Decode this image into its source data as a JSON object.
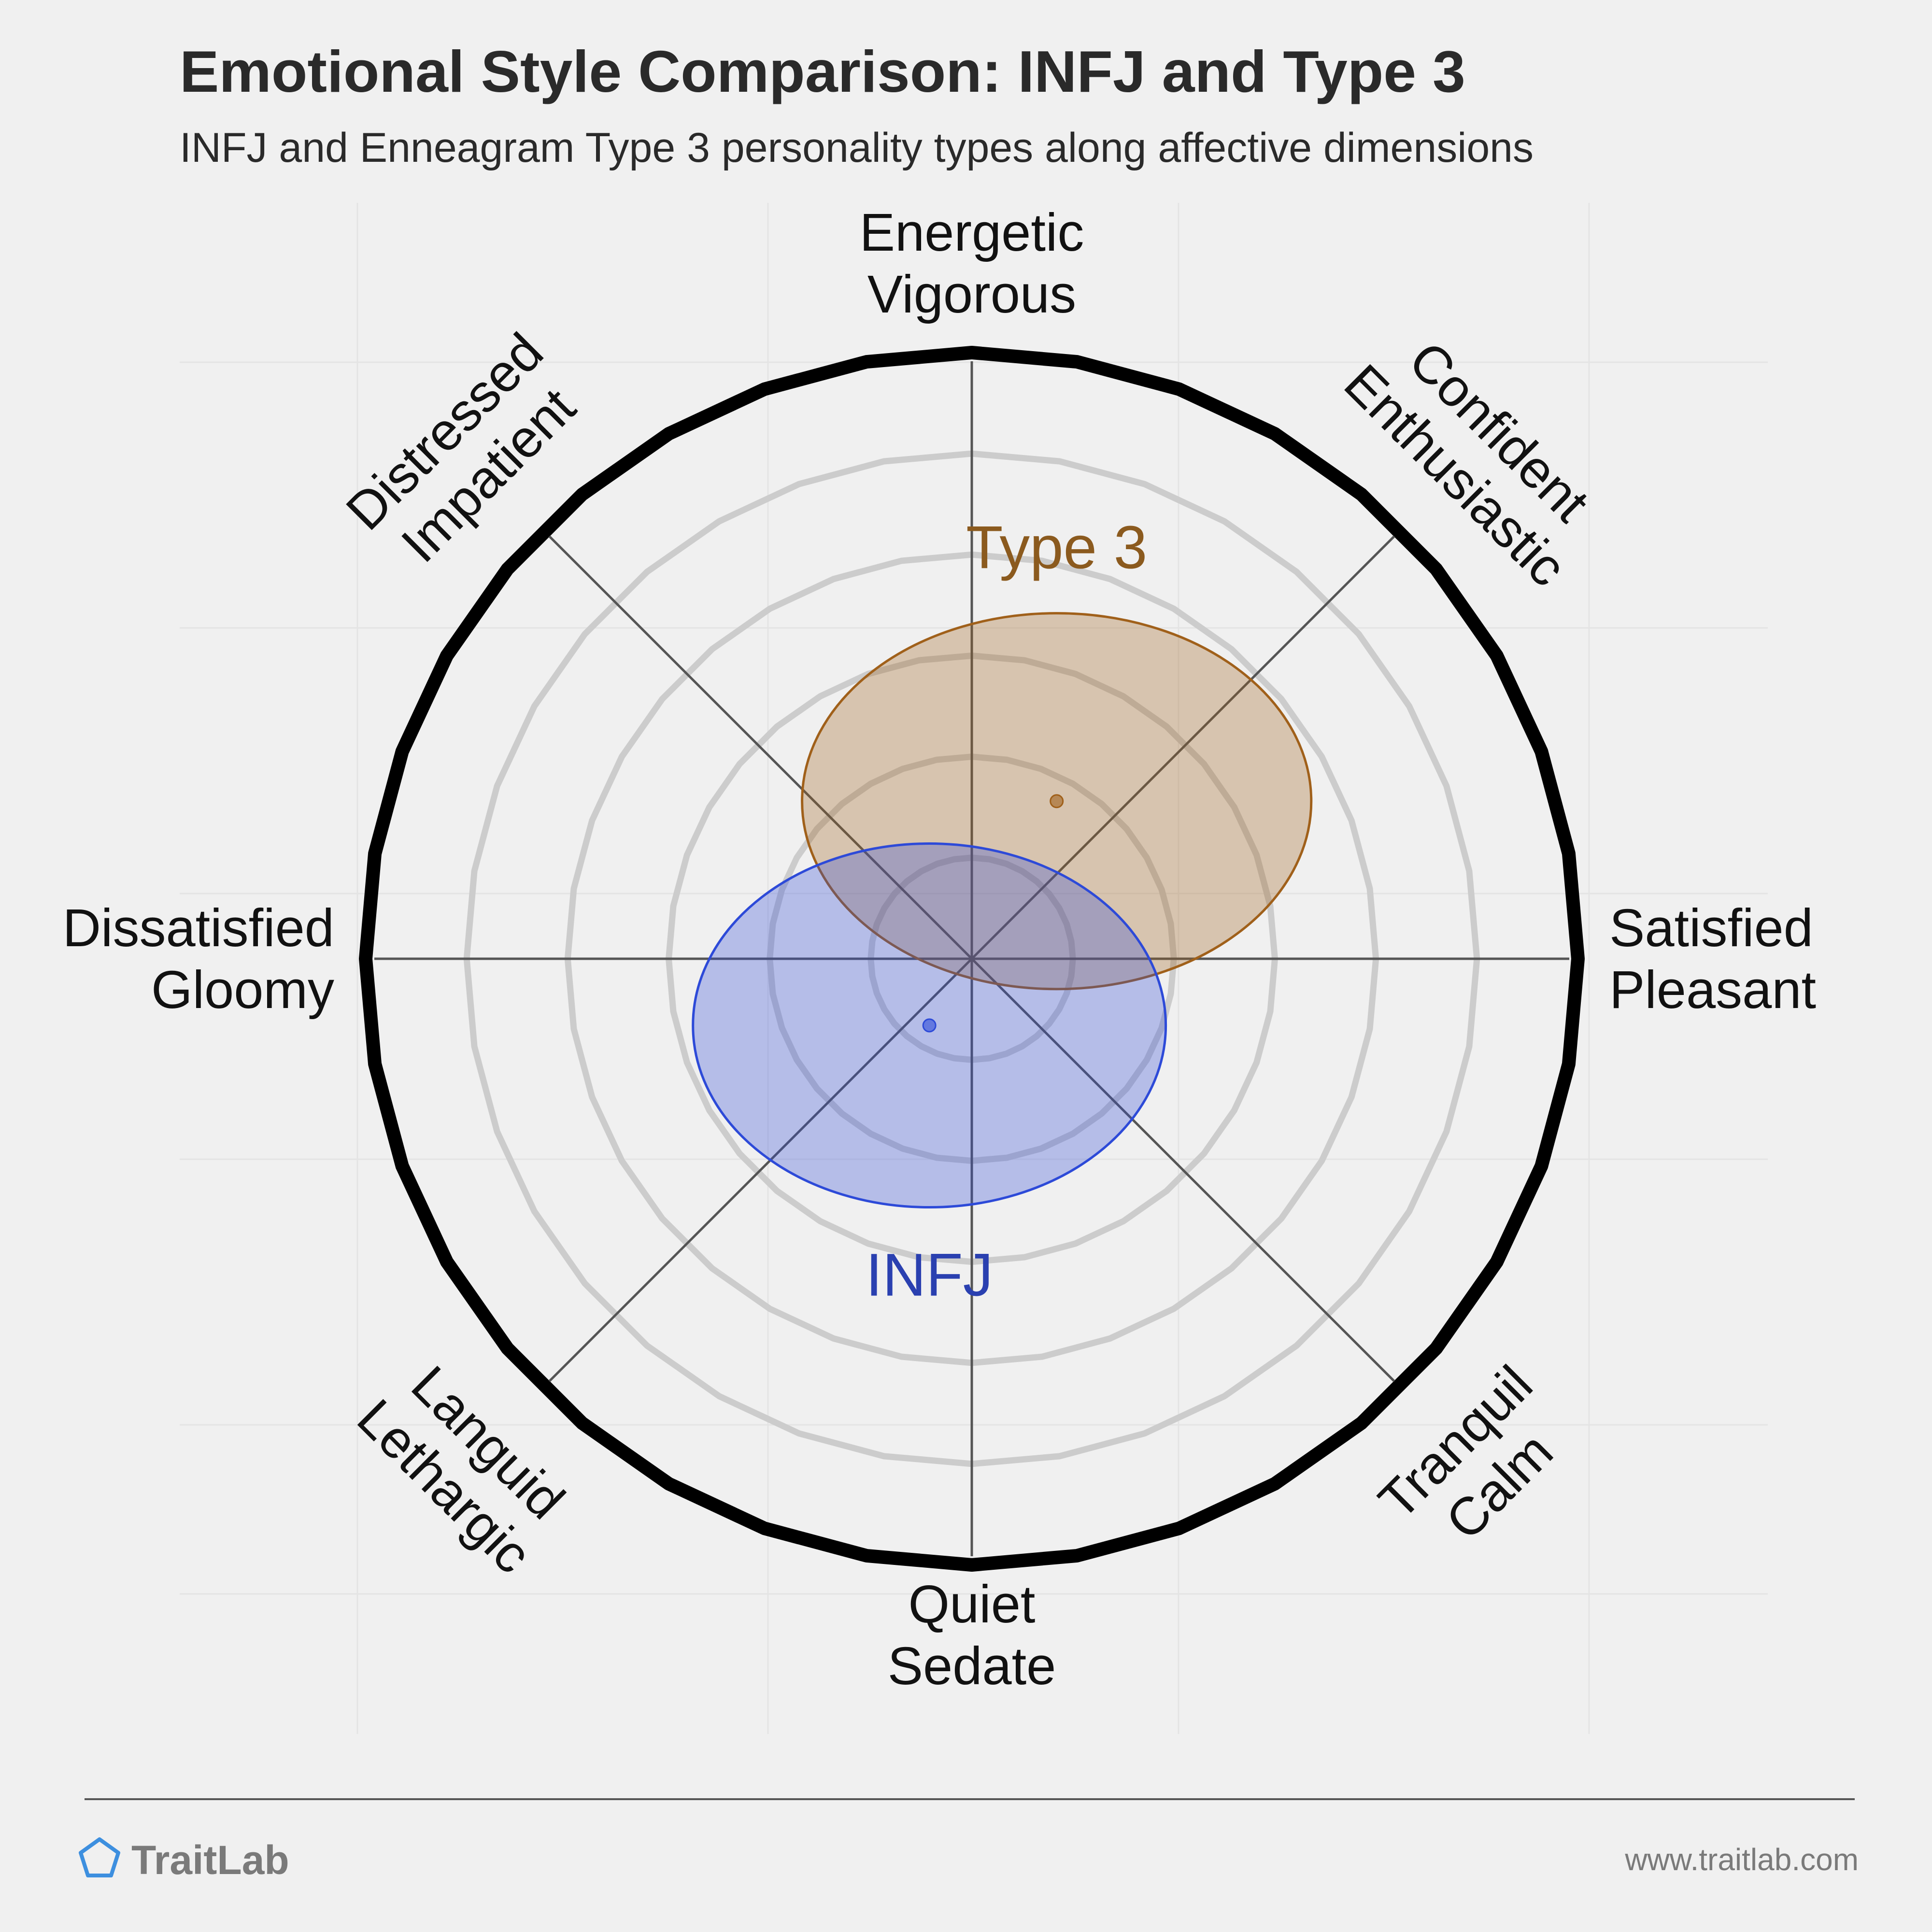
{
  "header": {
    "title": "Emotional Style Comparison: INFJ and Type 3",
    "subtitle": "INFJ and Enneagram Type 3 personality types along affective dimensions"
  },
  "footer": {
    "brand": "TraitLab",
    "url": "www.traitlab.com"
  },
  "colors": {
    "background": "#f0f0f0",
    "outer_ring": "#000000",
    "inner_rings": "#cccccc",
    "axes": "#555555",
    "type3": "#a0601a",
    "type3_label": "#8b5a1e",
    "infj": "#2d4ad8",
    "infj_label": "#2a40b0"
  },
  "chart_data": {
    "type": "radar-ellipse",
    "title": "Emotional Style Comparison: INFJ and Type 3",
    "subtitle": "INFJ and Enneagram Type 3 personality types along affective dimensions",
    "ring_count": 6,
    "axes": [
      {
        "angle_deg": 90,
        "lines": [
          "Energetic",
          "Vigorous"
        ]
      },
      {
        "angle_deg": 45,
        "lines": [
          "Confident",
          "Enthusiastic"
        ]
      },
      {
        "angle_deg": 0,
        "lines": [
          "Satisfied",
          "Pleasant"
        ]
      },
      {
        "angle_deg": -45,
        "lines": [
          "Tranquil",
          "Calm"
        ]
      },
      {
        "angle_deg": -90,
        "lines": [
          "Quiet",
          "Sedate"
        ]
      },
      {
        "angle_deg": -135,
        "lines": [
          "Languid",
          "Lethargic"
        ]
      },
      {
        "angle_deg": 180,
        "lines": [
          "Dissatisfied",
          "Gloomy"
        ]
      },
      {
        "angle_deg": 135,
        "lines": [
          "Distressed",
          "Impatient"
        ]
      }
    ],
    "series": [
      {
        "name": "Type 3",
        "center": {
          "x": 0.14,
          "y": 0.26
        },
        "spread": {
          "x": 0.42,
          "y": 0.31
        },
        "label_anchor": {
          "x": 0.14,
          "y": 0.68
        }
      },
      {
        "name": "INFJ",
        "center": {
          "x": -0.07,
          "y": -0.11
        },
        "spread": {
          "x": 0.39,
          "y": 0.3
        },
        "label_anchor": {
          "x": -0.07,
          "y": -0.52
        }
      }
    ]
  }
}
